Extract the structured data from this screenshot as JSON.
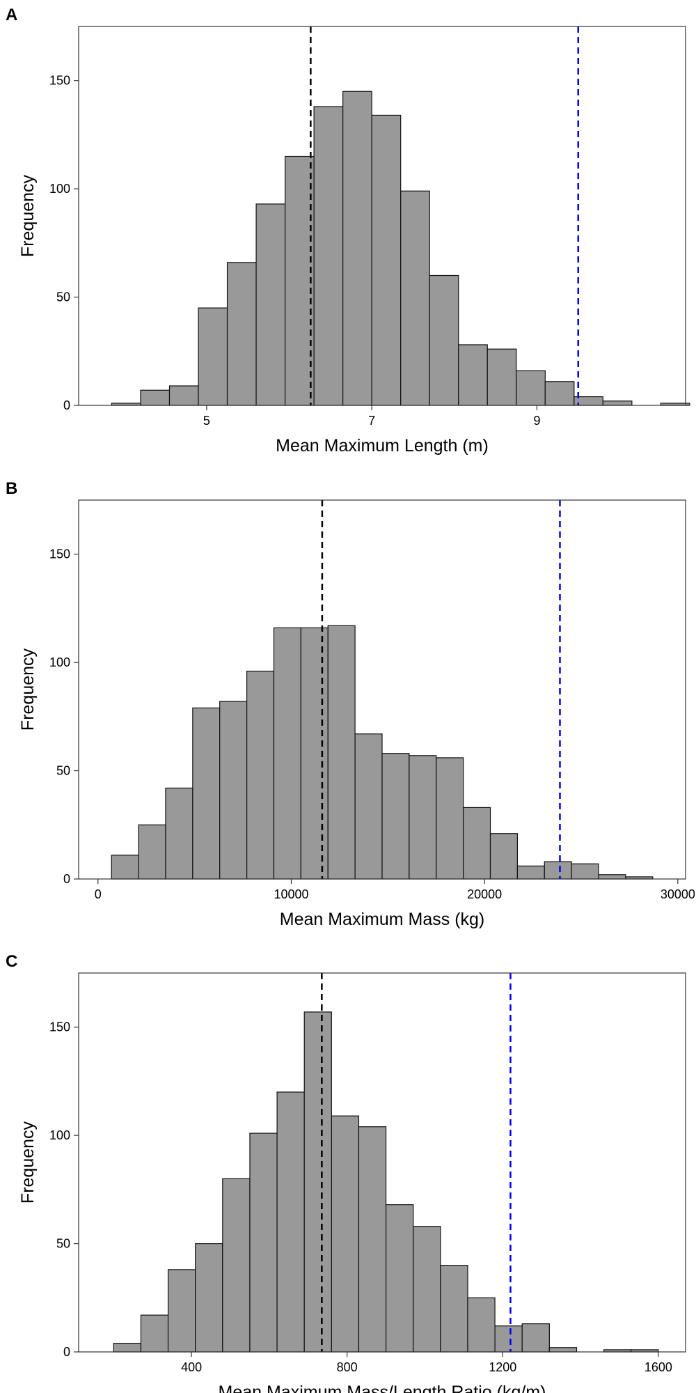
{
  "colors": {
    "bar_fill": "#999999",
    "bar_stroke": "#111111",
    "median_line": "#000000",
    "observed_line": "#0000ff"
  },
  "chart_data": [
    {
      "type": "bar",
      "panel_label": "A",
      "xlabel": "Mean Maximum Length (m)",
      "ylabel": "Frequency",
      "xlim": [
        3.45,
        10.8
      ],
      "ylim": [
        0,
        175
      ],
      "xticks": [
        5,
        7,
        9
      ],
      "yticks": [
        0,
        50,
        100,
        150
      ],
      "bins": [
        {
          "x0": 3.85,
          "x1": 4.2,
          "count": 1
        },
        {
          "x0": 4.2,
          "x1": 4.55,
          "count": 7
        },
        {
          "x0": 4.55,
          "x1": 4.9,
          "count": 9
        },
        {
          "x0": 4.9,
          "x1": 5.25,
          "count": 45
        },
        {
          "x0": 5.25,
          "x1": 5.6,
          "count": 66
        },
        {
          "x0": 5.6,
          "x1": 5.95,
          "count": 93
        },
        {
          "x0": 5.95,
          "x1": 6.3,
          "count": 115
        },
        {
          "x0": 6.3,
          "x1": 6.65,
          "count": 138
        },
        {
          "x0": 6.65,
          "x1": 7.0,
          "count": 145
        },
        {
          "x0": 7.0,
          "x1": 7.35,
          "count": 134
        },
        {
          "x0": 7.35,
          "x1": 7.7,
          "count": 99
        },
        {
          "x0": 7.7,
          "x1": 8.05,
          "count": 60
        },
        {
          "x0": 8.05,
          "x1": 8.4,
          "count": 28
        },
        {
          "x0": 8.4,
          "x1": 8.75,
          "count": 26
        },
        {
          "x0": 8.75,
          "x1": 9.1,
          "count": 16
        },
        {
          "x0": 9.1,
          "x1": 9.45,
          "count": 11
        },
        {
          "x0": 9.45,
          "x1": 9.8,
          "count": 4
        },
        {
          "x0": 9.8,
          "x1": 10.15,
          "count": 2
        },
        {
          "x0": 10.5,
          "x1": 10.85,
          "count": 1
        }
      ],
      "reference_lines": [
        {
          "x": 6.26,
          "color": "#000000"
        },
        {
          "x": 9.5,
          "color": "#0000ff"
        }
      ]
    },
    {
      "type": "bar",
      "panel_label": "B",
      "xlabel": "Mean Maximum Mass (kg)",
      "ylabel": "Frequency",
      "xlim": [
        -1000,
        30400
      ],
      "ylim": [
        0,
        175
      ],
      "xticks": [
        0,
        10000,
        20000,
        30000
      ],
      "yticks": [
        0,
        50,
        100,
        150
      ],
      "bins": [
        {
          "x0": 700,
          "x1": 2100,
          "count": 11
        },
        {
          "x0": 2100,
          "x1": 3500,
          "count": 25
        },
        {
          "x0": 3500,
          "x1": 4900,
          "count": 42
        },
        {
          "x0": 4900,
          "x1": 6300,
          "count": 79
        },
        {
          "x0": 6300,
          "x1": 7700,
          "count": 82
        },
        {
          "x0": 7700,
          "x1": 9100,
          "count": 96
        },
        {
          "x0": 9100,
          "x1": 10500,
          "count": 116
        },
        {
          "x0": 10500,
          "x1": 11900,
          "count": 116
        },
        {
          "x0": 11900,
          "x1": 13300,
          "count": 117
        },
        {
          "x0": 13300,
          "x1": 14700,
          "count": 67
        },
        {
          "x0": 14700,
          "x1": 16100,
          "count": 58
        },
        {
          "x0": 16100,
          "x1": 17500,
          "count": 57
        },
        {
          "x0": 17500,
          "x1": 18900,
          "count": 56
        },
        {
          "x0": 18900,
          "x1": 20300,
          "count": 33
        },
        {
          "x0": 20300,
          "x1": 21700,
          "count": 21
        },
        {
          "x0": 21700,
          "x1": 23100,
          "count": 6
        },
        {
          "x0": 23100,
          "x1": 24500,
          "count": 8
        },
        {
          "x0": 24500,
          "x1": 25900,
          "count": 7
        },
        {
          "x0": 25900,
          "x1": 27300,
          "count": 2
        },
        {
          "x0": 27300,
          "x1": 28700,
          "count": 1
        }
      ],
      "reference_lines": [
        {
          "x": 11600,
          "color": "#000000"
        },
        {
          "x": 23900,
          "color": "#0000ff"
        }
      ]
    },
    {
      "type": "bar",
      "panel_label": "C",
      "xlabel": "Mean Maximum Mass/Length Ratio (kg/m)",
      "ylabel": "Frequency",
      "xlim": [
        110,
        1670
      ],
      "ylim": [
        0,
        175
      ],
      "xticks": [
        400,
        800,
        1200,
        1600
      ],
      "yticks": [
        0,
        50,
        100,
        150
      ],
      "bins": [
        {
          "x0": 200,
          "x1": 270,
          "count": 4
        },
        {
          "x0": 270,
          "x1": 340,
          "count": 17
        },
        {
          "x0": 340,
          "x1": 410,
          "count": 38
        },
        {
          "x0": 410,
          "x1": 480,
          "count": 50
        },
        {
          "x0": 480,
          "x1": 550,
          "count": 80
        },
        {
          "x0": 550,
          "x1": 620,
          "count": 101
        },
        {
          "x0": 620,
          "x1": 690,
          "count": 120
        },
        {
          "x0": 690,
          "x1": 760,
          "count": 157
        },
        {
          "x0": 760,
          "x1": 830,
          "count": 109
        },
        {
          "x0": 830,
          "x1": 900,
          "count": 104
        },
        {
          "x0": 900,
          "x1": 970,
          "count": 68
        },
        {
          "x0": 970,
          "x1": 1040,
          "count": 58
        },
        {
          "x0": 1040,
          "x1": 1110,
          "count": 40
        },
        {
          "x0": 1110,
          "x1": 1180,
          "count": 25
        },
        {
          "x0": 1180,
          "x1": 1250,
          "count": 12
        },
        {
          "x0": 1250,
          "x1": 1320,
          "count": 13
        },
        {
          "x0": 1320,
          "x1": 1390,
          "count": 2
        },
        {
          "x0": 1460,
          "x1": 1530,
          "count": 1
        },
        {
          "x0": 1530,
          "x1": 1600,
          "count": 1
        }
      ],
      "reference_lines": [
        {
          "x": 735,
          "color": "#000000"
        },
        {
          "x": 1220,
          "color": "#0000ff"
        }
      ]
    }
  ]
}
